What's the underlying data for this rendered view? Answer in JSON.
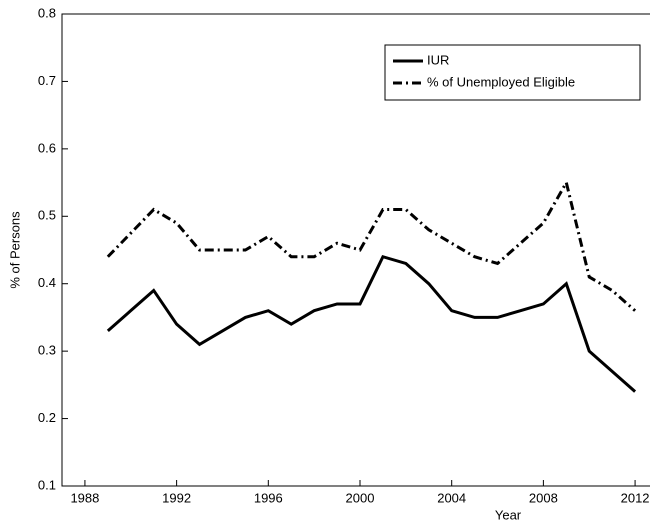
{
  "chart_data": {
    "type": "line",
    "x_label": "Year",
    "y_label": "% of Persons",
    "x": [
      1989,
      1990,
      1991,
      1992,
      1993,
      1994,
      1995,
      1996,
      1997,
      1998,
      1999,
      2000,
      2001,
      2002,
      2003,
      2004,
      2005,
      2006,
      2007,
      2008,
      2009,
      2010,
      2011,
      2012
    ],
    "series": [
      {
        "name": "IUR",
        "color": "#000000",
        "linestyle": "solid",
        "values": [
          0.33,
          0.36,
          0.39,
          0.34,
          0.31,
          0.33,
          0.35,
          0.36,
          0.34,
          0.36,
          0.37,
          0.37,
          0.44,
          0.43,
          0.4,
          0.36,
          0.35,
          0.35,
          0.36,
          0.37,
          0.4,
          0.3,
          0.27,
          0.24
        ]
      },
      {
        "name": "% of Unemployed Eligible",
        "color": "#000000",
        "linestyle": "dashdot",
        "values": [
          0.44,
          0.475,
          0.51,
          0.49,
          0.45,
          0.45,
          0.45,
          0.47,
          0.44,
          0.44,
          0.46,
          0.45,
          0.51,
          0.51,
          0.48,
          0.46,
          0.44,
          0.43,
          0.46,
          0.49,
          0.55,
          0.41,
          0.39,
          0.36
        ]
      }
    ],
    "xlim": [
      1987,
      2013
    ],
    "xticks": [
      1988,
      1992,
      1996,
      2000,
      2004,
      2008,
      2012
    ],
    "ylim": [
      0.1,
      0.8
    ],
    "yticks": [
      0.1,
      0.2,
      0.3,
      0.4,
      0.5,
      0.6,
      0.7,
      0.8
    ],
    "grid": false,
    "legend": "upper right"
  }
}
